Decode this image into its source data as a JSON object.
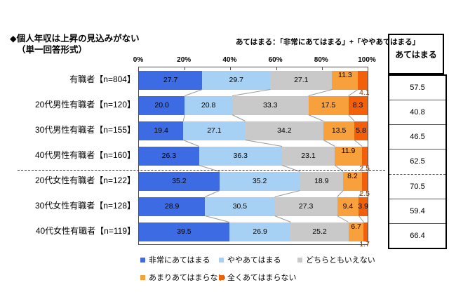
{
  "title": {
    "line1": "◆個人年収は上昇の見込みがない",
    "line2": "（単一回答形式）"
  },
  "note": "あてはまる：「非常にあてはまる」+「ややあてはまる」",
  "axis": {
    "ticks": [
      "0%",
      "20%",
      "40%",
      "60%",
      "80%",
      "100%"
    ]
  },
  "summary_column": {
    "header": "あてはまる",
    "values": [
      57.5,
      40.8,
      46.5,
      62.5,
      70.5,
      59.4,
      66.4
    ]
  },
  "chart_data": {
    "type": "bar",
    "stacked": true,
    "orientation": "horizontal",
    "title": "個人年収は上昇の見込みがない（単一回答形式）",
    "xlim": [
      0,
      100
    ],
    "legend_position": "bottom",
    "categories": [
      "有職者【n=804】",
      "20代男性有職者【n=120】",
      "30代男性有職者【n=155】",
      "40代男性有職者【n=160】",
      "20代女性有職者【n=122】",
      "30代女性有職者【n=128】",
      "40代女性有職者【n=119】"
    ],
    "series": [
      {
        "name": "非常にあてはまる",
        "color": "#3D6BE3",
        "values": [
          27.7,
          20.0,
          19.4,
          26.3,
          35.2,
          28.9,
          39.5
        ]
      },
      {
        "name": "ややあてはまる",
        "color": "#A6D1F5",
        "values": [
          29.7,
          20.8,
          27.1,
          36.3,
          35.2,
          30.5,
          26.9
        ]
      },
      {
        "name": "どちらともいえない",
        "color": "#C9C9C9",
        "values": [
          27.1,
          33.3,
          34.2,
          23.1,
          18.9,
          27.3,
          25.2
        ]
      },
      {
        "name": "あまりあてはまらない",
        "color": "#F7A03C",
        "values": [
          11.3,
          17.5,
          13.5,
          11.9,
          8.2,
          9.4,
          6.7
        ]
      },
      {
        "name": "全くあてはまらない",
        "color": "#F2610A",
        "values": [
          4.1,
          8.3,
          5.8,
          2.5,
          2.5,
          3.9,
          1.7
        ]
      }
    ],
    "separator_after_row": 3,
    "offset_last_label_rows": [
      0,
      3,
      4,
      6
    ],
    "offset_label_color": "#8B3000",
    "connector_line_color": "#999999"
  }
}
